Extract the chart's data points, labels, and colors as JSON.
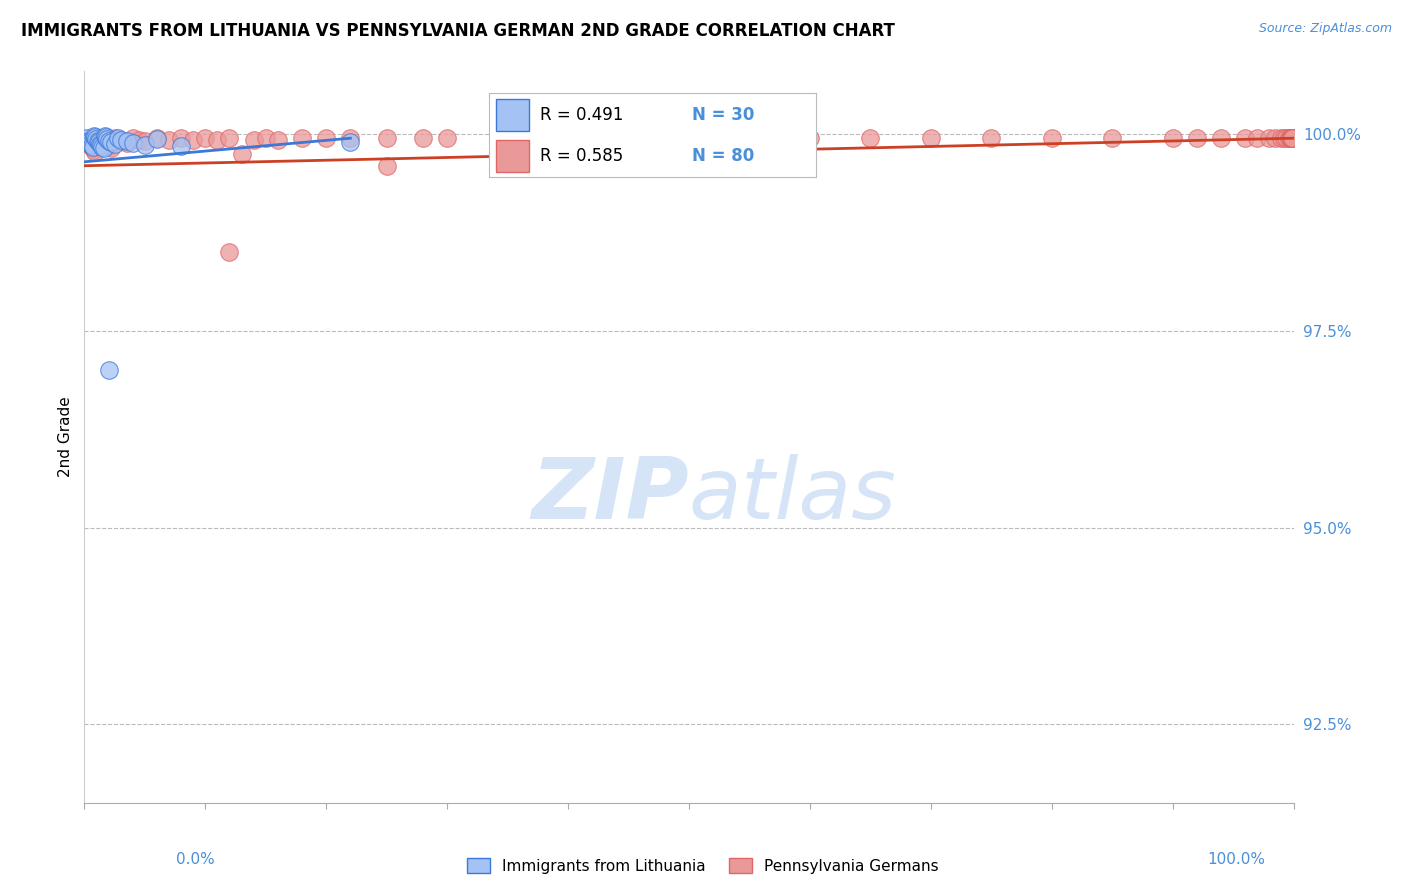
{
  "title": "IMMIGRANTS FROM LITHUANIA VS PENNSYLVANIA GERMAN 2ND GRADE CORRELATION CHART",
  "source": "Source: ZipAtlas.com",
  "ylabel": "2nd Grade",
  "ytick_labels": [
    "92.5%",
    "95.0%",
    "97.5%",
    "100.0%"
  ],
  "ytick_values": [
    0.925,
    0.95,
    0.975,
    1.0
  ],
  "xmin": 0.0,
  "xmax": 1.0,
  "ymin": 0.915,
  "ymax": 1.008,
  "legend_blue_R": "R = 0.491",
  "legend_blue_N": "N = 30",
  "legend_pink_R": "R = 0.585",
  "legend_pink_N": "N = 80",
  "blue_face_color": "#a4c2f4",
  "blue_edge_color": "#3c78d8",
  "pink_face_color": "#ea9999",
  "pink_edge_color": "#e06666",
  "blue_line_color": "#3c78d8",
  "pink_line_color": "#cc4125",
  "watermark_zip": "ZIP",
  "watermark_atlas": "atlas",
  "watermark_color": "#d6e4f7",
  "legend_text_color": "#4a90d9",
  "axis_label_color": "#4a90d9",
  "grid_color": "#bbbbbb",
  "blue_scatter_x": [
    0.002,
    0.003,
    0.004,
    0.005,
    0.006,
    0.007,
    0.008,
    0.009,
    0.01,
    0.011,
    0.012,
    0.013,
    0.014,
    0.015,
    0.016,
    0.017,
    0.018,
    0.019,
    0.02,
    0.022,
    0.025,
    0.028,
    0.03,
    0.035,
    0.04,
    0.05,
    0.06,
    0.08,
    0.22,
    0.02
  ],
  "blue_scatter_y": [
    0.9995,
    0.9992,
    0.999,
    0.9988,
    0.9986,
    0.9984,
    0.9998,
    0.9996,
    0.9994,
    0.9992,
    0.999,
    0.9988,
    0.9986,
    0.9984,
    0.9982,
    0.9998,
    0.9996,
    0.9994,
    0.9992,
    0.999,
    0.9988,
    0.9995,
    0.9993,
    0.9991,
    0.9989,
    0.9987,
    0.9994,
    0.9985,
    0.999,
    0.97
  ],
  "pink_scatter_x": [
    0.002,
    0.003,
    0.004,
    0.005,
    0.006,
    0.007,
    0.008,
    0.009,
    0.01,
    0.012,
    0.014,
    0.016,
    0.018,
    0.02,
    0.022,
    0.025,
    0.028,
    0.03,
    0.035,
    0.04,
    0.045,
    0.05,
    0.06,
    0.07,
    0.08,
    0.09,
    0.1,
    0.11,
    0.12,
    0.14,
    0.15,
    0.16,
    0.18,
    0.2,
    0.22,
    0.25,
    0.28,
    0.3,
    0.35,
    0.4,
    0.45,
    0.5,
    0.55,
    0.6,
    0.65,
    0.7,
    0.75,
    0.8,
    0.85,
    0.9,
    0.92,
    0.94,
    0.96,
    0.97,
    0.98,
    0.985,
    0.99,
    0.992,
    0.994,
    0.996,
    0.997,
    0.998,
    0.999,
    0.999,
    0.999,
    0.999,
    0.999,
    0.999,
    0.999,
    0.999,
    0.999,
    0.999,
    0.999,
    0.999,
    0.999,
    0.999,
    0.13,
    0.25,
    0.4,
    0.12
  ],
  "pink_scatter_y": [
    0.9992,
    0.999,
    0.9988,
    0.9986,
    0.9984,
    0.9982,
    0.998,
    0.9978,
    0.9995,
    0.9993,
    0.9991,
    0.9989,
    0.9987,
    0.9985,
    0.9983,
    0.9995,
    0.9993,
    0.9991,
    0.9989,
    0.9995,
    0.9993,
    0.9991,
    0.9995,
    0.9993,
    0.9995,
    0.9993,
    0.9995,
    0.9993,
    0.9995,
    0.9993,
    0.9995,
    0.9993,
    0.9995,
    0.9995,
    0.9995,
    0.9995,
    0.9995,
    0.9995,
    0.9995,
    0.9995,
    0.9995,
    0.9995,
    0.9995,
    0.9995,
    0.9995,
    0.9995,
    0.9995,
    0.9995,
    0.9995,
    0.9995,
    0.9995,
    0.9995,
    0.9995,
    0.9995,
    0.9995,
    0.9995,
    0.9995,
    0.9995,
    0.9995,
    0.9995,
    0.9995,
    0.9995,
    0.9995,
    0.9995,
    0.9995,
    0.9995,
    0.9995,
    0.9995,
    0.9995,
    0.9995,
    0.9995,
    0.9995,
    0.9995,
    0.9995,
    0.9995,
    0.9995,
    0.9975,
    0.996,
    0.998,
    0.985
  ],
  "blue_line_x": [
    0.0,
    0.22
  ],
  "blue_line_y": [
    0.9965,
    0.9995
  ],
  "pink_line_x": [
    0.0,
    1.0
  ],
  "pink_line_y": [
    0.996,
    0.9995
  ]
}
